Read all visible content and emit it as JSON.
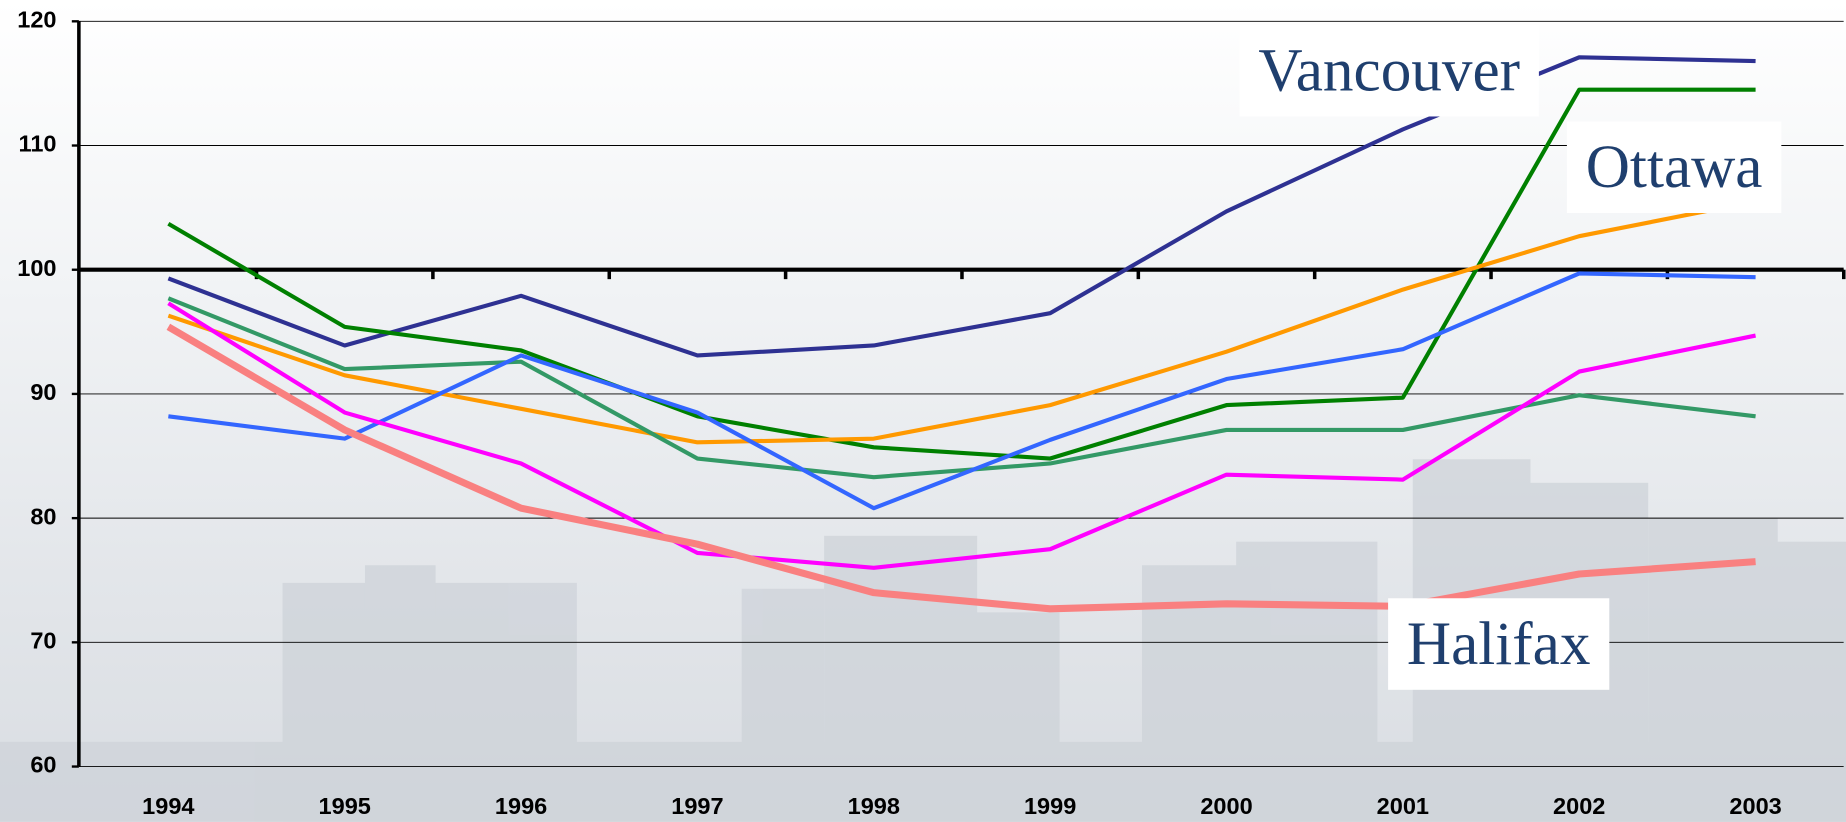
{
  "chart_data": {
    "type": "line",
    "categories": [
      "1994",
      "1995",
      "1996",
      "1997",
      "1998",
      "1999",
      "2000",
      "2001",
      "2002",
      "2003"
    ],
    "series": [
      {
        "name": "Vancouver",
        "color": "#2e3192",
        "values": [
          99.3,
          93.9,
          97.9,
          93.1,
          93.9,
          96.5,
          104.7,
          111.3,
          117.1,
          116.8
        ]
      },
      {
        "color": "#008000",
        "values": [
          103.7,
          95.4,
          93.5,
          88.2,
          85.7,
          84.8,
          89.1,
          89.7,
          114.5,
          114.5
        ]
      },
      {
        "name": "Ottawa",
        "color": "#ff9900",
        "values": [
          96.3,
          91.5,
          88.8,
          86.1,
          86.4,
          89.1,
          93.4,
          98.4,
          102.7,
          105.5
        ]
      },
      {
        "color": "#339966",
        "values": [
          97.7,
          92.0,
          92.6,
          84.8,
          83.3,
          84.4,
          87.1,
          87.1,
          89.9,
          88.2
        ]
      },
      {
        "color": "#3366ff",
        "values": [
          88.2,
          86.4,
          93.1,
          88.5,
          80.8,
          86.3,
          91.2,
          93.6,
          99.7,
          99.4
        ]
      },
      {
        "color": "#ff00ff",
        "values": [
          97.3,
          88.5,
          84.4,
          77.2,
          76.0,
          77.5,
          83.5,
          83.1,
          91.8,
          94.7
        ]
      },
      {
        "name": "Halifax",
        "color": "#f98080",
        "values": [
          95.4,
          87.1,
          80.8,
          77.9,
          74.0,
          72.7,
          73.1,
          72.9,
          75.5,
          76.5
        ]
      }
    ],
    "ylim": [
      60,
      120
    ],
    "yticks": [
      60,
      70,
      80,
      90,
      100,
      110,
      120
    ],
    "grid": true,
    "reference_line": 100
  }
}
